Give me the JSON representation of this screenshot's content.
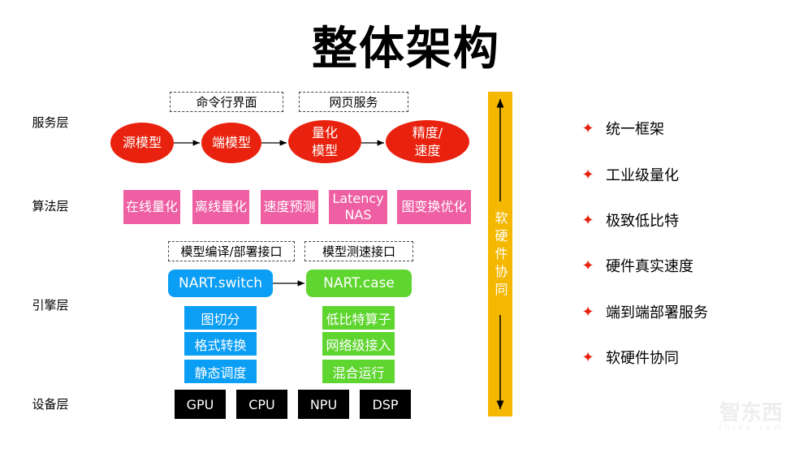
{
  "title": "整体架构",
  "layers": [
    "服务层",
    "算法层",
    "引擎层",
    "设备层"
  ],
  "service": {
    "interfaces": [
      "命令行界面",
      "网页服务"
    ],
    "pipeline": [
      "源模型",
      "端模型",
      "量化\n模型",
      "精度/\n速度"
    ]
  },
  "algorithm": [
    "在线量化",
    "离线量化",
    "速度预测",
    "Latency\nNAS",
    "图变换优化"
  ],
  "engine": {
    "interfaces": [
      "模型编译/部署接口",
      "模型测速接口"
    ],
    "switch": {
      "label": "NART.switch",
      "items": [
        "图切分",
        "格式转换",
        "静态调度"
      ]
    },
    "case": {
      "label": "NART.case",
      "items": [
        "低比特算子",
        "网络级接入",
        "混合运行"
      ]
    }
  },
  "devices": [
    "GPU",
    "CPU",
    "NPU",
    "DSP"
  ],
  "side_bar": "软硬件协同",
  "features": [
    "统一框架",
    "工业级量化",
    "极致低比特",
    "硬件真实速度",
    "端到端部署服务",
    "软硬件协同"
  ],
  "watermark": {
    "logo": "智东西",
    "url": "zhidx.com"
  },
  "colors": {
    "ellipse": "#e8220e",
    "algorithm": "#ee5fa3",
    "switch": "#0a9ef5",
    "case": "#5fd52f",
    "device": "#000000",
    "bar": "#f5b800",
    "star": "#e8220e"
  }
}
